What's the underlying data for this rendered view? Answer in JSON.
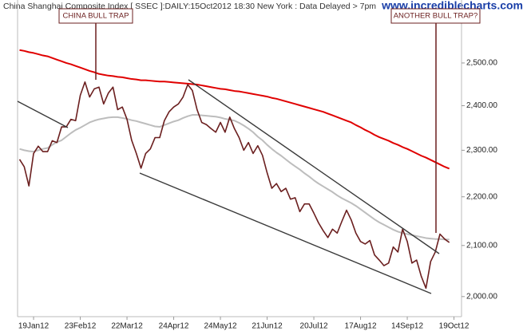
{
  "chart_data": {
    "type": "line",
    "title": "China Shanghai Composite Index [ SSEC ]:DAILY:15Oct2012 18:30 New York : Data Delayed > 7pm",
    "watermark": "www.incrediblecharts.com",
    "annotations": [
      "CHINA BULL TRAP",
      "ANOTHER BULL TRAP?"
    ],
    "log_scale": true,
    "ylim": [
      1962,
      2655
    ],
    "yticks": [
      {
        "value": 2000,
        "label": "2,000.00"
      },
      {
        "value": 2100,
        "label": "2,100.00"
      },
      {
        "value": 2200,
        "label": "2,200.00"
      },
      {
        "value": 2300,
        "label": "2,300.00"
      },
      {
        "value": 2400,
        "label": "2,400.00"
      },
      {
        "value": 2500,
        "label": "2,500.00"
      }
    ],
    "categories": [
      null,
      null,
      null,
      "19Jan12",
      null,
      null,
      null,
      null,
      null,
      null,
      null,
      null,
      null,
      "23Feb12",
      null,
      null,
      null,
      null,
      null,
      null,
      null,
      null,
      null,
      "22Mar12",
      null,
      null,
      null,
      null,
      null,
      null,
      null,
      null,
      null,
      "24Apr12",
      null,
      null,
      null,
      null,
      null,
      null,
      null,
      null,
      null,
      "24May12",
      null,
      null,
      null,
      null,
      null,
      null,
      null,
      null,
      null,
      "21Jun12",
      null,
      null,
      null,
      null,
      null,
      null,
      null,
      null,
      null,
      "20Jul12",
      null,
      null,
      null,
      null,
      null,
      null,
      null,
      null,
      null,
      "17Aug12",
      null,
      null,
      null,
      null,
      null,
      null,
      null,
      null,
      null,
      "14Sep12",
      null,
      null,
      null,
      null,
      null,
      null,
      null,
      null,
      null,
      "19Oct12"
    ],
    "series": [
      {
        "color": "#e00000",
        "values": [
          2531,
          2529,
          2526,
          2524,
          2521,
          2518,
          2516,
          2512,
          2508,
          2504,
          2500,
          2497,
          2493,
          2489,
          2485,
          2481,
          2478,
          2474,
          2472,
          2470,
          2469,
          2467,
          2466,
          2464,
          2462,
          2461,
          2459,
          2459,
          2458,
          2457,
          2456,
          2456,
          2455,
          2454,
          2453,
          2452,
          2451,
          2450,
          2449,
          2447,
          2445,
          2443,
          2441,
          2439,
          2438,
          2436,
          2434,
          2433,
          2431,
          2429,
          2427,
          2425,
          2423,
          2421,
          2418,
          2416,
          2413,
          2410,
          2407,
          2404,
          2401,
          2398,
          2395,
          2392,
          2389,
          2386,
          2382,
          2378,
          2374,
          2370,
          2366,
          2362,
          2356,
          2351,
          2345,
          2340,
          2334,
          2329,
          2325,
          2321,
          2316,
          2312,
          2307,
          2303,
          2298,
          2293,
          2288,
          2284,
          2279,
          2274,
          2269,
          2264,
          2260,
          null
        ]
      },
      {
        "color": "#bdbdbd",
        "values": [
          2303,
          2300,
          2298,
          2297,
          2300,
          2303,
          2305,
          2312,
          2318,
          2322,
          2330,
          2338,
          2345,
          2350,
          2356,
          2362,
          2366,
          2369,
          2371,
          2373,
          2374,
          2374,
          2372,
          2370,
          2367,
          2365,
          2362,
          2359,
          2356,
          2353,
          2352,
          2356,
          2360,
          2364,
          2367,
          2372,
          2376,
          2379,
          2379,
          2378,
          2377,
          2376,
          2375,
          2373,
          2370,
          2368,
          2366,
          2361,
          2355,
          2348,
          2340,
          2330,
          2322,
          2312,
          2303,
          2295,
          2288,
          2280,
          2272,
          2265,
          2258,
          2250,
          2243,
          2235,
          2228,
          2222,
          2216,
          2210,
          2203,
          2197,
          2192,
          2187,
          2181,
          2174,
          2167,
          2160,
          2153,
          2147,
          2142,
          2137,
          2132,
          2128,
          2125,
          2123,
          2121,
          2119,
          2117,
          2115,
          2114,
          2113,
          2113,
          2112,
          2112,
          null
        ]
      },
      {
        "color": "#6b1f1f",
        "values": [
          2280,
          2264,
          2223,
          2293,
          2309,
          2297,
          2297,
          2321,
          2317,
          2352,
          2352,
          2369,
          2366,
          2424,
          2455,
          2420,
          2439,
          2443,
          2404,
          2429,
          2443,
          2391,
          2397,
          2369,
          2322,
          2293,
          2261,
          2293,
          2303,
          2328,
          2328,
          2366,
          2386,
          2397,
          2404,
          2420,
          2449,
          2435,
          2391,
          2362,
          2357,
          2348,
          2340,
          2362,
          2340,
          2374,
          2348,
          2328,
          2300,
          2317,
          2293,
          2310,
          2289,
          2251,
          2218,
          2228,
          2211,
          2218,
          2195,
          2198,
          2169,
          2185,
          2185,
          2166,
          2146,
          2130,
          2116,
          2133,
          2125,
          2149,
          2172,
          2152,
          2125,
          2108,
          2103,
          2110,
          2081,
          2071,
          2060,
          2065,
          2097,
          2087,
          2133,
          2108,
          2065,
          2071,
          2039,
          2016,
          2068,
          2087,
          2123,
          2113,
          2106,
          null
        ]
      }
    ]
  }
}
